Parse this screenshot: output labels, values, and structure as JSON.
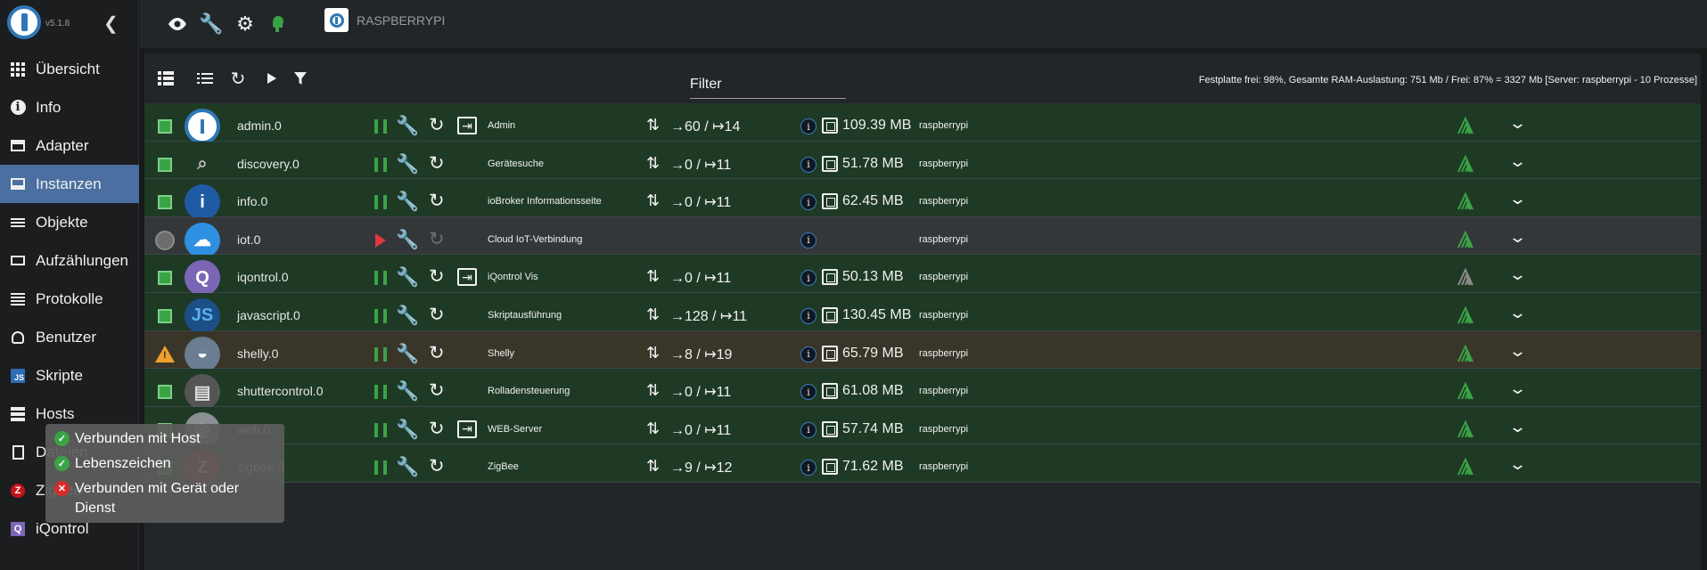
{
  "app": {
    "version": "v5.1.8"
  },
  "sidebar": {
    "items": [
      {
        "label": "Übersicht",
        "icon": "grid-icon"
      },
      {
        "label": "Info",
        "icon": "info-icon"
      },
      {
        "label": "Adapter",
        "icon": "store-icon"
      },
      {
        "label": "Instanzen",
        "icon": "instances-icon",
        "active": true
      },
      {
        "label": "Objekte",
        "icon": "list-icon"
      },
      {
        "label": "Aufzählungen",
        "icon": "enums-icon"
      },
      {
        "label": "Protokolle",
        "icon": "logs-icon"
      },
      {
        "label": "Benutzer",
        "icon": "user-icon"
      },
      {
        "label": "Skripte",
        "icon": "js-icon"
      },
      {
        "label": "Hosts",
        "icon": "hosts-icon"
      },
      {
        "label": "Dateien",
        "icon": "files-icon"
      },
      {
        "label": "Zigbee",
        "icon": "zigbee-icon"
      },
      {
        "label": "iQontrol",
        "icon": "iqontrol-icon"
      }
    ]
  },
  "tooltip": {
    "items": [
      {
        "text": "Verbunden mit Host",
        "status": "ok"
      },
      {
        "text": "Lebenszeichen",
        "status": "ok"
      },
      {
        "text": "Verbunden mit Gerät oder Dienst",
        "status": "error"
      }
    ]
  },
  "topbar": {
    "host_name": "RASPBERRYPI"
  },
  "toolbar": {
    "filter_label": "Filter",
    "system_info": "Festplatte frei: 98%, Gesamte RAM-Auslastung: 751 Mb / Frei: 87% = 3327 Mb [Server: raspberrypi - 10 Prozesse]"
  },
  "instances": [
    {
      "name": "admin.0",
      "title": "Admin",
      "events": "→60 / ↦14",
      "memory": "109.39 MB",
      "host": "raspberrypi",
      "status": "running",
      "has_web": true
    },
    {
      "name": "discovery.0",
      "title": "Gerätesuche",
      "events": "→0 / ↦11",
      "memory": "51.78 MB",
      "host": "raspberrypi",
      "status": "running",
      "has_web": false
    },
    {
      "name": "info.0",
      "title": "ioBroker Informationsseite",
      "events": "→0 / ↦11",
      "memory": "62.45 MB",
      "host": "raspberrypi",
      "status": "running",
      "has_web": false
    },
    {
      "name": "iot.0",
      "title": "Cloud IoT-Verbindung",
      "events": "",
      "memory": "",
      "host": "raspberrypi",
      "status": "stopped",
      "has_web": false
    },
    {
      "name": "iqontrol.0",
      "title": "iQontrol Vis",
      "events": "→0 / ↦11",
      "memory": "50.13 MB",
      "host": "raspberrypi",
      "status": "running",
      "has_web": true
    },
    {
      "name": "javascript.0",
      "title": "Skriptausführung",
      "events": "→128 / ↦11",
      "memory": "130.45 MB",
      "host": "raspberrypi",
      "status": "running",
      "has_web": false
    },
    {
      "name": "shelly.0",
      "title": "Shelly",
      "events": "→8 / ↦19",
      "memory": "65.79 MB",
      "host": "raspberrypi",
      "status": "warning",
      "has_web": false
    },
    {
      "name": "shuttercontrol.0",
      "title": "Rolladensteuerung",
      "events": "→0 / ↦11",
      "memory": "61.08 MB",
      "host": "raspberrypi",
      "status": "running",
      "has_web": false
    },
    {
      "name": "web.0",
      "title": "WEB-Server",
      "events": "→0 / ↦11",
      "memory": "57.74 MB",
      "host": "raspberrypi",
      "status": "running",
      "has_web": true
    },
    {
      "name": "zigbee.0",
      "title": "ZigBee",
      "events": "→9 / ↦12",
      "memory": "71.62 MB",
      "host": "raspberrypi",
      "status": "running",
      "has_web": false
    }
  ]
}
